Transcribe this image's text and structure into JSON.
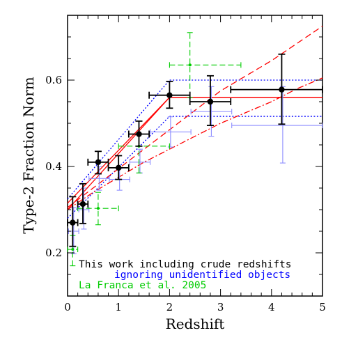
{
  "chart_data": {
    "type": "scatter",
    "xlabel": "Redshift",
    "ylabel": "Type-2 Fraction Norm",
    "xlim": [
      0,
      5
    ],
    "ylim": [
      0.1,
      0.75
    ],
    "x_ticks": [
      0,
      1,
      2,
      3,
      4,
      5
    ],
    "x_tick_labels": [
      "0",
      "1",
      "2",
      "3",
      "4",
      "5"
    ],
    "y_ticks": [
      0.2,
      0.4,
      0.6
    ],
    "y_tick_labels": [
      "0.2",
      "0.4",
      "0.6"
    ],
    "grid": false,
    "legend_position": "bottom-left",
    "legend": [
      {
        "label": "This work including crude redshifts",
        "color": "#000000"
      },
      {
        "label": "ignoring unidentified objects",
        "color": "#0000ff"
      },
      {
        "label": "La Franca et al. 2005",
        "color": "#00cc00"
      }
    ],
    "series": [
      {
        "name": "This work including crude redshifts",
        "color": "#000000",
        "points": [
          {
            "x": 0.1,
            "y": 0.27,
            "xlo": 0.0,
            "xhi": 0.2,
            "ylo": 0.215,
            "yhi": 0.33
          },
          {
            "x": 0.3,
            "y": 0.313,
            "xlo": 0.2,
            "xhi": 0.4,
            "ylo": 0.268,
            "yhi": 0.36
          },
          {
            "x": 0.6,
            "y": 0.41,
            "xlo": 0.4,
            "xhi": 0.8,
            "ylo": 0.383,
            "yhi": 0.435
          },
          {
            "x": 1.0,
            "y": 0.397,
            "xlo": 0.8,
            "xhi": 1.2,
            "ylo": 0.37,
            "yhi": 0.425
          },
          {
            "x": 1.4,
            "y": 0.475,
            "xlo": 1.2,
            "xhi": 1.6,
            "ylo": 0.447,
            "yhi": 0.505
          },
          {
            "x": 2.0,
            "y": 0.565,
            "xlo": 1.6,
            "xhi": 2.4,
            "ylo": 0.535,
            "yhi": 0.597
          },
          {
            "x": 2.8,
            "y": 0.55,
            "xlo": 2.4,
            "xhi": 3.2,
            "ylo": 0.495,
            "yhi": 0.61
          },
          {
            "x": 4.2,
            "y": 0.578,
            "xlo": 3.2,
            "xhi": 5.0,
            "ylo": 0.498,
            "yhi": 0.66
          }
        ]
      },
      {
        "name": "ignoring unidentified objects",
        "color": "#8c8cff",
        "points": [
          {
            "x": 0.12,
            "y": 0.25,
            "xlo": 0.02,
            "xhi": 0.22,
            "ylo": 0.198,
            "yhi": 0.305
          },
          {
            "x": 0.32,
            "y": 0.3,
            "xlo": 0.22,
            "xhi": 0.42,
            "ylo": 0.255,
            "yhi": 0.35
          },
          {
            "x": 0.62,
            "y": 0.372,
            "xlo": 0.42,
            "xhi": 0.82,
            "ylo": 0.345,
            "yhi": 0.4
          },
          {
            "x": 1.02,
            "y": 0.37,
            "xlo": 0.82,
            "xhi": 1.22,
            "ylo": 0.345,
            "yhi": 0.395
          },
          {
            "x": 1.42,
            "y": 0.41,
            "xlo": 1.22,
            "xhi": 1.62,
            "ylo": 0.385,
            "yhi": 0.44
          },
          {
            "x": 2.02,
            "y": 0.48,
            "xlo": 1.62,
            "xhi": 2.42,
            "ylo": 0.445,
            "yhi": 0.515
          },
          {
            "x": 2.82,
            "y": 0.527,
            "xlo": 2.42,
            "xhi": 3.22,
            "ylo": 0.47,
            "yhi": 0.585
          },
          {
            "x": 4.22,
            "y": 0.495,
            "xlo": 3.22,
            "xhi": 5.0,
            "ylo": 0.408,
            "yhi": 0.585
          }
        ]
      },
      {
        "name": "La Franca et al. 2005",
        "color": "#00cc00",
        "dashed": true,
        "points": [
          {
            "x": 0.1,
            "y": 0.208,
            "xlo": 0.0,
            "xhi": 0.2,
            "ylo": 0.17,
            "yhi": 0.24
          },
          {
            "x": 0.6,
            "y": 0.303,
            "xlo": 0.2,
            "xhi": 1.0,
            "ylo": 0.265,
            "yhi": 0.34
          },
          {
            "x": 1.4,
            "y": 0.447,
            "xlo": 1.0,
            "xhi": 2.0,
            "ylo": 0.385,
            "yhi": 0.505
          },
          {
            "x": 2.4,
            "y": 0.635,
            "xlo": 2.0,
            "xhi": 3.4,
            "ylo": 0.56,
            "yhi": 0.71
          }
        ]
      }
    ],
    "curves": [
      {
        "color": "#ff0000",
        "style": "solid",
        "x": [
          0,
          2,
          5
        ],
        "y": [
          0.3,
          0.56,
          0.56
        ]
      },
      {
        "color": "#ff0000",
        "style": "solid",
        "x": [
          0,
          2,
          5
        ],
        "y": [
          0.315,
          0.56,
          0.56
        ]
      },
      {
        "color": "#0000ff",
        "style": "dotted",
        "x": [
          0,
          2,
          5
        ],
        "y": [
          0.325,
          0.6,
          0.6
        ]
      },
      {
        "color": "#0000ff",
        "style": "dotted",
        "x": [
          0,
          2,
          5
        ],
        "y": [
          0.28,
          0.516,
          0.516
        ]
      },
      {
        "color": "#ff0000",
        "style": "dashed",
        "x": [
          0,
          0.5,
          1,
          1.5,
          2,
          2.5,
          3,
          3.5,
          4,
          4.5,
          5
        ],
        "y": [
          0.305,
          0.35,
          0.395,
          0.44,
          0.485,
          0.53,
          0.575,
          0.61,
          0.645,
          0.685,
          0.725
        ]
      },
      {
        "color": "#ff0000",
        "style": "dashdot",
        "x": [
          0,
          0.5,
          1,
          1.5,
          2,
          2.5,
          3,
          3.5,
          4,
          4.5,
          5
        ],
        "y": [
          0.3,
          0.34,
          0.375,
          0.41,
          0.44,
          0.47,
          0.5,
          0.525,
          0.55,
          0.58,
          0.605
        ]
      }
    ]
  }
}
